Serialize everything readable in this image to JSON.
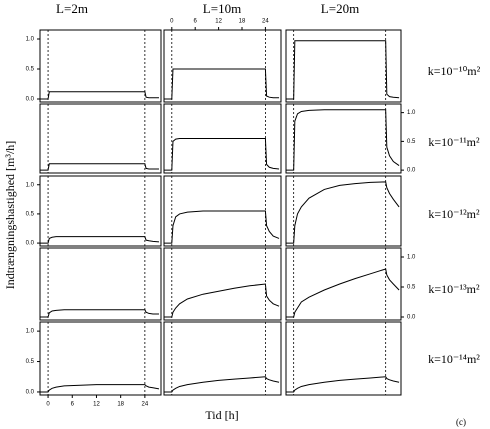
{
  "column_titles": [
    "L=2m",
    "L=10m",
    "L=20m"
  ],
  "row_labels": [
    "k=10⁻¹⁰m²",
    "k=10⁻¹¹m²",
    "k=10⁻¹²m²",
    "k=10⁻¹³m²",
    "k=10⁻¹⁴m²"
  ],
  "ylabel": "Indtrængningshastighed [m³/h]",
  "xlabel": "Tid [h]",
  "note": "(c)",
  "chart_data": [
    {
      "type": "line",
      "x": [
        -2,
        0,
        0.3,
        1,
        2,
        4,
        8,
        12,
        16,
        20,
        24,
        24.3,
        25,
        26,
        27.5
      ],
      "values": [
        0,
        0,
        0.12,
        0.12,
        0.12,
        0.12,
        0.12,
        0.12,
        0.12,
        0.12,
        0.12,
        0.03,
        0.02,
        0.02,
        0.02
      ],
      "xlim": [
        -2,
        28
      ],
      "ylim": [
        -0.05,
        1.15
      ],
      "vlines": [
        0,
        24
      ],
      "yticks": [
        {
          "value": 0,
          "label": "0.0"
        },
        {
          "value": 0.5,
          "label": "0.5"
        },
        {
          "value": 1,
          "label": "1.0"
        }
      ],
      "yaxis_side": "left"
    },
    {
      "type": "line",
      "x": [
        -2,
        0,
        0.3,
        1,
        2,
        4,
        8,
        12,
        16,
        20,
        24,
        24.3,
        25,
        26,
        27.5
      ],
      "values": [
        0,
        0,
        0.5,
        0.5,
        0.5,
        0.5,
        0.5,
        0.5,
        0.5,
        0.5,
        0.5,
        0.05,
        0.03,
        0.02,
        0.02
      ],
      "xlim": [
        -2,
        28
      ],
      "ylim": [
        -0.05,
        1.15
      ],
      "vlines": [
        0,
        24
      ],
      "xticks": [
        0,
        6,
        12,
        18,
        24
      ],
      "xaxis_side": "top"
    },
    {
      "type": "line",
      "x": [
        -2,
        0,
        0.3,
        1,
        2,
        4,
        8,
        12,
        16,
        20,
        24,
        24.3,
        25,
        26,
        27.5
      ],
      "values": [
        0,
        0,
        0.97,
        0.97,
        0.97,
        0.97,
        0.97,
        0.97,
        0.97,
        0.97,
        0.97,
        0.08,
        0.04,
        0.03,
        0.02
      ],
      "xlim": [
        -2,
        28
      ],
      "ylim": [
        -0.05,
        1.15
      ],
      "vlines": [
        0,
        24
      ]
    },
    {
      "type": "line",
      "x": [
        -2,
        0,
        0.3,
        1,
        2,
        4,
        8,
        12,
        16,
        20,
        24,
        24.3,
        25,
        26,
        27.5
      ],
      "values": [
        0,
        0,
        0.11,
        0.11,
        0.11,
        0.11,
        0.11,
        0.11,
        0.11,
        0.11,
        0.11,
        0.03,
        0.02,
        0.02,
        0.02
      ],
      "xlim": [
        -2,
        28
      ],
      "ylim": [
        -0.05,
        1.15
      ],
      "vlines": [
        0,
        24
      ]
    },
    {
      "type": "line",
      "x": [
        -2,
        0,
        0.3,
        1,
        2,
        4,
        8,
        12,
        16,
        20,
        24,
        24.3,
        25,
        26,
        27.5
      ],
      "values": [
        0,
        0,
        0.5,
        0.54,
        0.55,
        0.55,
        0.55,
        0.55,
        0.55,
        0.55,
        0.55,
        0.1,
        0.05,
        0.03,
        0.02
      ],
      "xlim": [
        -2,
        28
      ],
      "ylim": [
        -0.05,
        1.15
      ],
      "vlines": [
        0,
        24
      ]
    },
    {
      "type": "line",
      "x": [
        -2,
        0,
        0.3,
        1,
        2,
        4,
        8,
        12,
        16,
        20,
        24,
        24.3,
        25,
        26,
        27.5
      ],
      "values": [
        0,
        0,
        0.85,
        0.98,
        1.02,
        1.04,
        1.05,
        1.05,
        1.05,
        1.05,
        1.05,
        0.4,
        0.25,
        0.15,
        0.08
      ],
      "xlim": [
        -2,
        28
      ],
      "ylim": [
        -0.05,
        1.15
      ],
      "vlines": [
        0,
        24
      ],
      "yticks": [
        {
          "value": 0,
          "label": "0.0"
        },
        {
          "value": 0.5,
          "label": "0.5"
        },
        {
          "value": 1,
          "label": "1.0"
        }
      ],
      "yaxis_side": "right"
    },
    {
      "type": "line",
      "x": [
        -2,
        0,
        0.3,
        1,
        2,
        4,
        8,
        12,
        16,
        20,
        24,
        24.3,
        25,
        26,
        27.5
      ],
      "values": [
        0,
        0,
        0.08,
        0.1,
        0.11,
        0.11,
        0.11,
        0.11,
        0.11,
        0.11,
        0.11,
        0.05,
        0.04,
        0.03,
        0.02
      ],
      "xlim": [
        -2,
        28
      ],
      "ylim": [
        -0.05,
        1.15
      ],
      "vlines": [
        0,
        24
      ],
      "yticks": [
        {
          "value": 0,
          "label": "0.0"
        },
        {
          "value": 0.5,
          "label": "0.5"
        },
        {
          "value": 1,
          "label": "1.0"
        }
      ],
      "yaxis_side": "left"
    },
    {
      "type": "line",
      "x": [
        -2,
        0,
        0.3,
        1,
        2,
        4,
        8,
        12,
        16,
        20,
        24,
        24.3,
        25,
        26,
        27.5
      ],
      "values": [
        0,
        0,
        0.3,
        0.45,
        0.5,
        0.53,
        0.55,
        0.55,
        0.55,
        0.55,
        0.55,
        0.3,
        0.2,
        0.12,
        0.08
      ],
      "xlim": [
        -2,
        28
      ],
      "ylim": [
        -0.05,
        1.15
      ],
      "vlines": [
        0,
        24
      ]
    },
    {
      "type": "line",
      "x": [
        -2,
        0,
        0.3,
        1,
        2,
        4,
        8,
        12,
        16,
        20,
        24,
        24.3,
        25,
        26,
        27.5
      ],
      "values": [
        0,
        0,
        0.3,
        0.5,
        0.62,
        0.77,
        0.92,
        0.99,
        1.02,
        1.04,
        1.05,
        0.95,
        0.85,
        0.75,
        0.62
      ],
      "xlim": [
        -2,
        28
      ],
      "ylim": [
        -0.05,
        1.15
      ],
      "vlines": [
        0,
        24
      ]
    },
    {
      "type": "line",
      "x": [
        -2,
        0,
        0.3,
        1,
        2,
        4,
        8,
        12,
        16,
        20,
        24,
        24.3,
        25,
        26,
        27.5
      ],
      "values": [
        0,
        0,
        0.07,
        0.1,
        0.11,
        0.12,
        0.12,
        0.12,
        0.12,
        0.12,
        0.12,
        0.08,
        0.06,
        0.05,
        0.05
      ],
      "xlim": [
        -2,
        28
      ],
      "ylim": [
        -0.05,
        1.15
      ],
      "vlines": [
        0,
        24
      ]
    },
    {
      "type": "line",
      "x": [
        -2,
        0,
        0.3,
        1,
        2,
        4,
        8,
        12,
        16,
        20,
        24,
        24.3,
        25,
        26,
        27.5
      ],
      "values": [
        0,
        0,
        0.08,
        0.15,
        0.22,
        0.3,
        0.38,
        0.43,
        0.48,
        0.52,
        0.55,
        0.35,
        0.28,
        0.22,
        0.18
      ],
      "xlim": [
        -2,
        28
      ],
      "ylim": [
        -0.05,
        1.15
      ],
      "vlines": [
        0,
        24
      ]
    },
    {
      "type": "line",
      "x": [
        -2,
        0,
        0.3,
        1,
        2,
        4,
        8,
        12,
        16,
        20,
        24,
        24.3,
        25,
        26,
        27.5
      ],
      "values": [
        0,
        0,
        0.08,
        0.15,
        0.25,
        0.33,
        0.45,
        0.55,
        0.64,
        0.72,
        0.8,
        0.7,
        0.62,
        0.55,
        0.45
      ],
      "xlim": [
        -2,
        28
      ],
      "ylim": [
        -0.05,
        1.15
      ],
      "vlines": [
        0,
        24
      ],
      "yticks": [
        {
          "value": 0,
          "label": "0.0"
        },
        {
          "value": 0.5,
          "label": "0.5"
        },
        {
          "value": 1,
          "label": "1.0"
        }
      ],
      "yaxis_side": "right"
    },
    {
      "type": "line",
      "x": [
        -2,
        0,
        0.3,
        1,
        2,
        4,
        8,
        12,
        16,
        20,
        24,
        24.3,
        25,
        26,
        27.5
      ],
      "values": [
        0,
        0,
        0.03,
        0.06,
        0.08,
        0.1,
        0.11,
        0.12,
        0.12,
        0.12,
        0.12,
        0.1,
        0.08,
        0.07,
        0.05
      ],
      "xlim": [
        -2,
        28
      ],
      "ylim": [
        -0.05,
        1.15
      ],
      "vlines": [
        0,
        24
      ],
      "yticks": [
        {
          "value": 0,
          "label": "0.0"
        },
        {
          "value": 0.5,
          "label": "0.5"
        },
        {
          "value": 1,
          "label": "1.0"
        }
      ],
      "yaxis_side": "left",
      "xticks": [
        0,
        6,
        12,
        18,
        24
      ],
      "xaxis_side": "bottom"
    },
    {
      "type": "line",
      "x": [
        -2,
        0,
        0.3,
        1,
        2,
        4,
        8,
        12,
        16,
        20,
        24,
        24.3,
        25,
        26,
        27.5
      ],
      "values": [
        0,
        0,
        0.03,
        0.06,
        0.09,
        0.12,
        0.16,
        0.19,
        0.21,
        0.23,
        0.25,
        0.22,
        0.2,
        0.18,
        0.16
      ],
      "xlim": [
        -2,
        28
      ],
      "ylim": [
        -0.05,
        1.15
      ],
      "vlines": [
        0,
        24
      ]
    },
    {
      "type": "line",
      "x": [
        -2,
        0,
        0.3,
        1,
        2,
        4,
        8,
        12,
        16,
        20,
        24,
        24.3,
        25,
        26,
        27.5
      ],
      "values": [
        0,
        0,
        0.03,
        0.06,
        0.09,
        0.12,
        0.16,
        0.19,
        0.21,
        0.23,
        0.25,
        0.22,
        0.2,
        0.18,
        0.16
      ],
      "xlim": [
        -2,
        28
      ],
      "ylim": [
        -0.05,
        1.15
      ],
      "vlines": [
        0,
        24
      ]
    }
  ]
}
